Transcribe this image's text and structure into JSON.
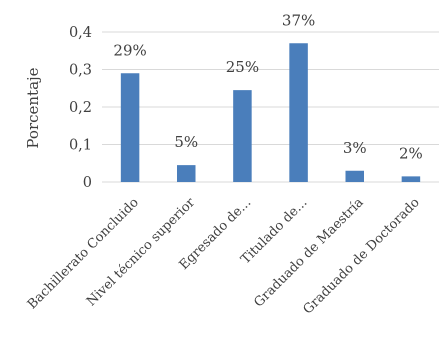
{
  "chart_data": {
    "type": "bar",
    "categories": [
      "Bachillerato Concluido",
      "Nivel técnico superior",
      "Egresado de...",
      "Titulado de...",
      "Graduado de Maestría",
      "Graduado de Doctorado"
    ],
    "values": [
      0.29,
      0.045,
      0.245,
      0.37,
      0.03,
      0.015
    ],
    "data_labels": [
      "29%",
      "5%",
      "25%",
      "37%",
      "3%",
      "2%"
    ],
    "title": "",
    "xlabel": "",
    "ylabel": "Porcentaje",
    "ylim": [
      0,
      0.4
    ],
    "yticks": [
      "0",
      "0,1",
      "0,2",
      "0,3",
      "0,4"
    ],
    "grid": true,
    "legend": "none",
    "colors": {
      "bar": "#4a7ebb",
      "grid": "#d9d9d9",
      "text": "#404040"
    }
  }
}
